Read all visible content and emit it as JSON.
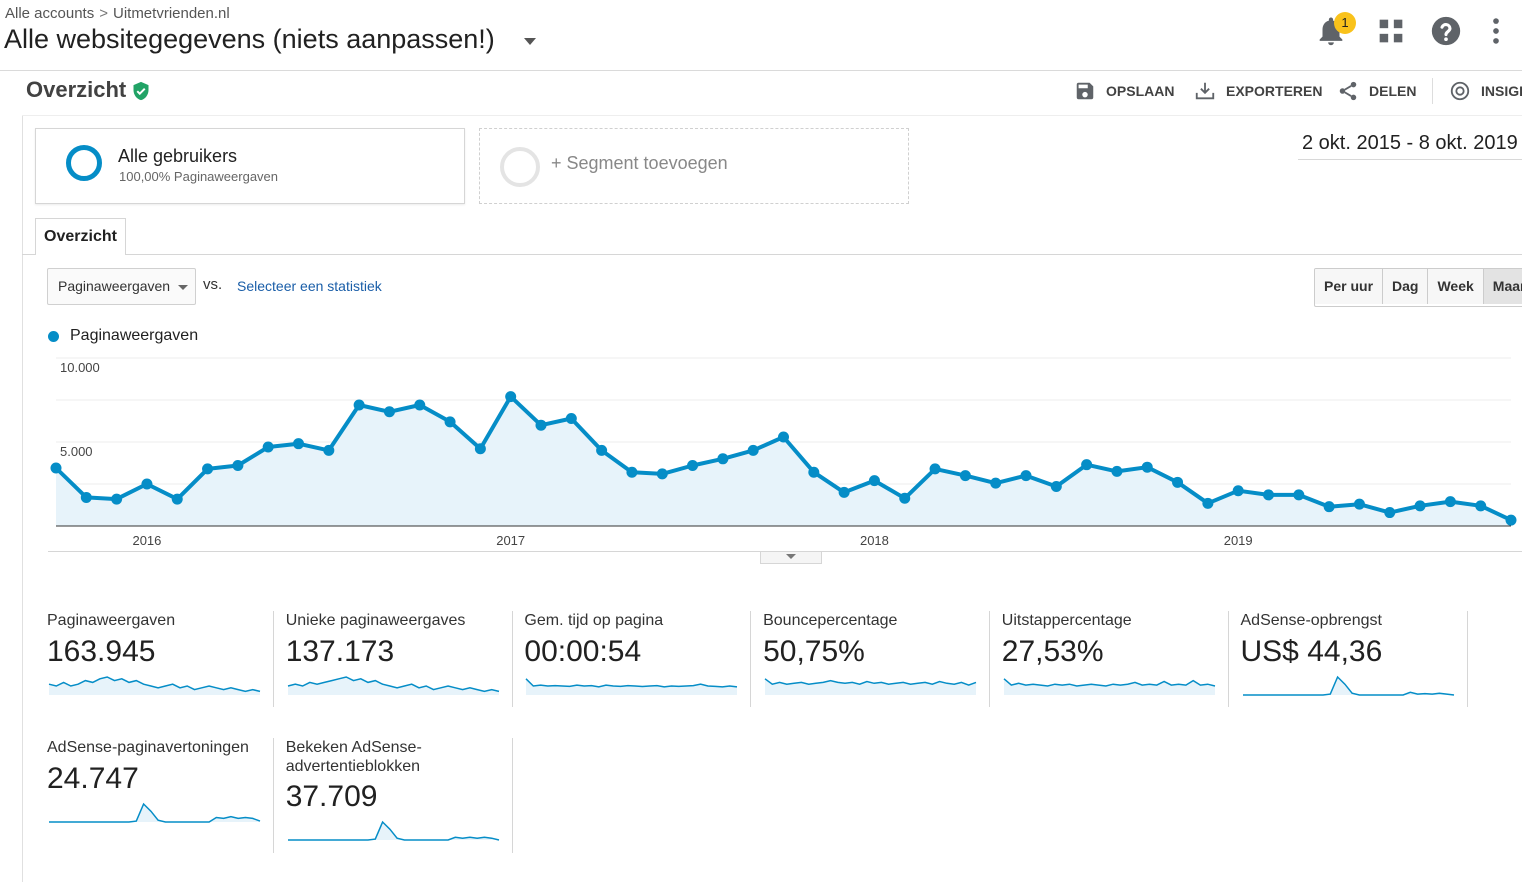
{
  "header": {
    "breadcrumb_account": "Alle accounts",
    "breadcrumb_separator": ">",
    "breadcrumb_property": "Uitmetvrienden.nl",
    "view_name": "Alle websitegegevens (niets aanpassen!)",
    "notification_count": "1"
  },
  "report": {
    "title": "Overzicht",
    "actions": {
      "save": "OPSLAAN",
      "export": "EXPORTEREN",
      "share": "DELEN",
      "insights": "INSIGH"
    },
    "date_range": "2 okt. 2015 - 8 okt. 2019"
  },
  "segments": {
    "active_name": "Alle gebruikers",
    "active_detail": "100,00% Paginaweergaven",
    "add_label": "+ Segment toevoegen"
  },
  "tabs": [
    {
      "label": "Overzicht"
    }
  ],
  "controls": {
    "metric": "Paginaweergaven",
    "vs_label": "vs.",
    "compare_link": "Selecteer een statistiek",
    "periods": [
      "Per uur",
      "Dag",
      "Week",
      "Maand"
    ],
    "active_period": "Maand"
  },
  "colors": {
    "series": "#058dc7",
    "area_fill": "#e7f3fa",
    "badge": "#f9c21b",
    "verified": "#21a366"
  },
  "chart_data": {
    "type": "line",
    "title": "",
    "xlabel": "",
    "ylabel": "",
    "legend": "Paginaweergaven",
    "x_tick_labels": [
      "2016",
      "2017",
      "2018",
      "2019"
    ],
    "y_tick_labels": [
      "10.000",
      "5.000"
    ],
    "ylim": [
      0,
      10000
    ],
    "x": [
      "2015-10",
      "2015-11",
      "2015-12",
      "2016-01",
      "2016-02",
      "2016-03",
      "2016-04",
      "2016-05",
      "2016-06",
      "2016-07",
      "2016-08",
      "2016-09",
      "2016-10",
      "2016-11",
      "2016-12",
      "2017-01",
      "2017-02",
      "2017-03",
      "2017-04",
      "2017-05",
      "2017-06",
      "2017-07",
      "2017-08",
      "2017-09",
      "2017-10",
      "2017-11",
      "2017-12",
      "2018-01",
      "2018-02",
      "2018-03",
      "2018-04",
      "2018-05",
      "2018-06",
      "2018-07",
      "2018-08",
      "2018-09",
      "2018-10",
      "2018-11",
      "2018-12",
      "2019-01",
      "2019-02",
      "2019-03",
      "2019-04",
      "2019-05",
      "2019-06",
      "2019-07",
      "2019-08",
      "2019-09",
      "2019-10"
    ],
    "series": [
      {
        "name": "Paginaweergaven",
        "values": [
          3450,
          1700,
          1600,
          2500,
          1600,
          3400,
          3600,
          4700,
          4900,
          4500,
          7200,
          6800,
          7200,
          6200,
          4600,
          7700,
          6000,
          6400,
          4500,
          3200,
          3100,
          3600,
          4000,
          4500,
          5300,
          3200,
          2000,
          2700,
          1650,
          3400,
          3000,
          2550,
          3000,
          2350,
          3650,
          3250,
          3500,
          2600,
          1350,
          2100,
          1850,
          1850,
          1150,
          1300,
          800,
          1200,
          1450,
          1200,
          350
        ]
      }
    ]
  },
  "metrics": [
    {
      "label": "Paginaweergaven",
      "value": "163.945",
      "spark": [
        0.6,
        0.5,
        0.7,
        0.5,
        0.6,
        0.8,
        0.7,
        0.9,
        1.0,
        0.8,
        0.9,
        0.7,
        0.8,
        0.6,
        0.5,
        0.4,
        0.5,
        0.6,
        0.4,
        0.5,
        0.3,
        0.4,
        0.5,
        0.4,
        0.3,
        0.4,
        0.3,
        0.2,
        0.3,
        0.2
      ]
    },
    {
      "label": "Unieke paginaweergaves",
      "value": "137.173",
      "spark": [
        0.5,
        0.6,
        0.5,
        0.7,
        0.6,
        0.7,
        0.8,
        0.9,
        1.0,
        0.8,
        0.9,
        0.7,
        0.8,
        0.6,
        0.5,
        0.4,
        0.5,
        0.6,
        0.4,
        0.5,
        0.3,
        0.4,
        0.5,
        0.4,
        0.3,
        0.4,
        0.3,
        0.2,
        0.3,
        0.2
      ]
    },
    {
      "label": "Gem. tijd op pagina",
      "value": "00:00:54",
      "spark": [
        0.9,
        0.5,
        0.55,
        0.5,
        0.52,
        0.5,
        0.48,
        0.55,
        0.5,
        0.52,
        0.45,
        0.55,
        0.5,
        0.48,
        0.52,
        0.5,
        0.47,
        0.5,
        0.52,
        0.45,
        0.5,
        0.48,
        0.5,
        0.52,
        0.6,
        0.5,
        0.48,
        0.45,
        0.5,
        0.45
      ]
    },
    {
      "label": "Bouncepercentage",
      "value": "50,75%",
      "spark": [
        0.9,
        0.6,
        0.7,
        0.6,
        0.65,
        0.7,
        0.6,
        0.65,
        0.7,
        0.8,
        0.7,
        0.65,
        0.7,
        0.6,
        0.75,
        0.65,
        0.7,
        0.6,
        0.65,
        0.7,
        0.6,
        0.65,
        0.7,
        0.6,
        0.75,
        0.65,
        0.6,
        0.7,
        0.55,
        0.7
      ]
    },
    {
      "label": "Uitstappercentage",
      "value": "27,53%",
      "spark": [
        0.9,
        0.55,
        0.65,
        0.55,
        0.6,
        0.55,
        0.5,
        0.6,
        0.55,
        0.6,
        0.5,
        0.55,
        0.6,
        0.55,
        0.5,
        0.6,
        0.55,
        0.6,
        0.7,
        0.55,
        0.6,
        0.55,
        0.75,
        0.55,
        0.6,
        0.55,
        0.8,
        0.55,
        0.6,
        0.5
      ]
    },
    {
      "label": "AdSense-opbrengst",
      "value": "US$ 44,36",
      "spark": [
        0,
        0,
        0,
        0,
        0,
        0,
        0,
        0,
        0,
        0,
        0,
        0,
        0.05,
        1.0,
        0.6,
        0.1,
        0,
        0,
        0,
        0,
        0,
        0,
        0,
        0.15,
        0.05,
        0.08,
        0.05,
        0.1,
        0.05,
        0
      ]
    },
    {
      "label": "AdSense-paginavertoningen",
      "value": "24.747",
      "spark": [
        0,
        0,
        0,
        0,
        0,
        0,
        0,
        0,
        0,
        0,
        0,
        0,
        0.05,
        1.0,
        0.6,
        0.1,
        0,
        0,
        0,
        0,
        0,
        0,
        0,
        0.25,
        0.2,
        0.3,
        0.2,
        0.25,
        0.2,
        0.05
      ]
    },
    {
      "label": "Bekeken AdSense-advertentieblokken",
      "value": "37.709",
      "spark": [
        0,
        0,
        0,
        0,
        0,
        0,
        0,
        0,
        0,
        0,
        0,
        0,
        0.05,
        1.0,
        0.6,
        0.1,
        0,
        0,
        0,
        0,
        0,
        0,
        0,
        0.15,
        0.1,
        0.15,
        0.1,
        0.15,
        0.1,
        0
      ]
    }
  ]
}
